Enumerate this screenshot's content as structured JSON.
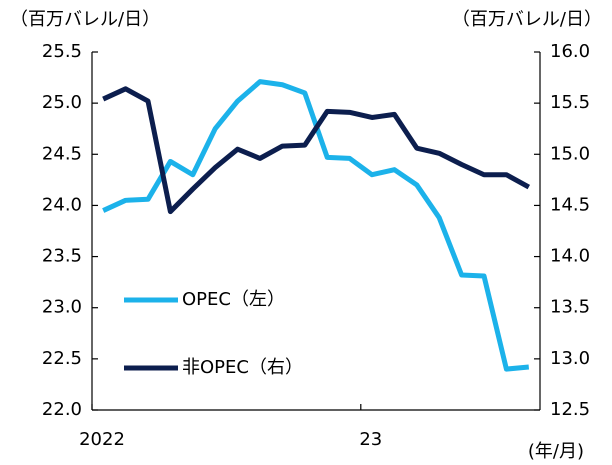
{
  "chart_data": {
    "type": "line",
    "y_label": "（百万バレル/日）",
    "y2_label": "（百万バレル/日）",
    "x_label": "(年/月)",
    "categories": [
      "2022",
      null,
      null,
      null,
      null,
      null,
      null,
      null,
      null,
      null,
      null,
      null,
      "23",
      null,
      null,
      null,
      null,
      null,
      null,
      null
    ],
    "series": [
      {
        "name": "OPEC（左）",
        "color": "#1cb2ea",
        "values": [
          23.95,
          24.05,
          24.06,
          24.43,
          24.3,
          24.75,
          25.02,
          25.21,
          25.18,
          25.1,
          24.47,
          24.46,
          24.3,
          24.35,
          24.2,
          23.88,
          23.32,
          23.31,
          22.4,
          22.42
        ]
      },
      {
        "name": "非OPEC（右）",
        "color": "#0c1e4e",
        "axis": "y2",
        "values": [
          15.54,
          15.64,
          15.52,
          14.44,
          14.66,
          14.87,
          15.05,
          14.96,
          15.08,
          15.09,
          15.42,
          15.41,
          15.36,
          15.39,
          15.06,
          15.01,
          14.9,
          14.8,
          14.8,
          14.68
        ]
      }
    ],
    "ylim": [
      22.0,
      25.5
    ],
    "yticks": [
      {
        "value": 22,
        "label": "22.0"
      },
      22.5,
      {
        "value": 23,
        "label": "23.0"
      },
      23.5,
      {
        "value": 24,
        "label": "24.0"
      },
      24.5,
      {
        "value": 25,
        "label": "25.0"
      },
      25.5
    ],
    "y2lim": [
      12.5,
      16.0
    ],
    "y2ticks": [
      12.5,
      {
        "value": 13,
        "label": "13.0"
      },
      13.5,
      {
        "value": 14,
        "label": "14.0"
      },
      14.5,
      {
        "value": 15,
        "label": "15.0"
      },
      15.5,
      {
        "value": 16,
        "label": "16.0"
      }
    ]
  }
}
